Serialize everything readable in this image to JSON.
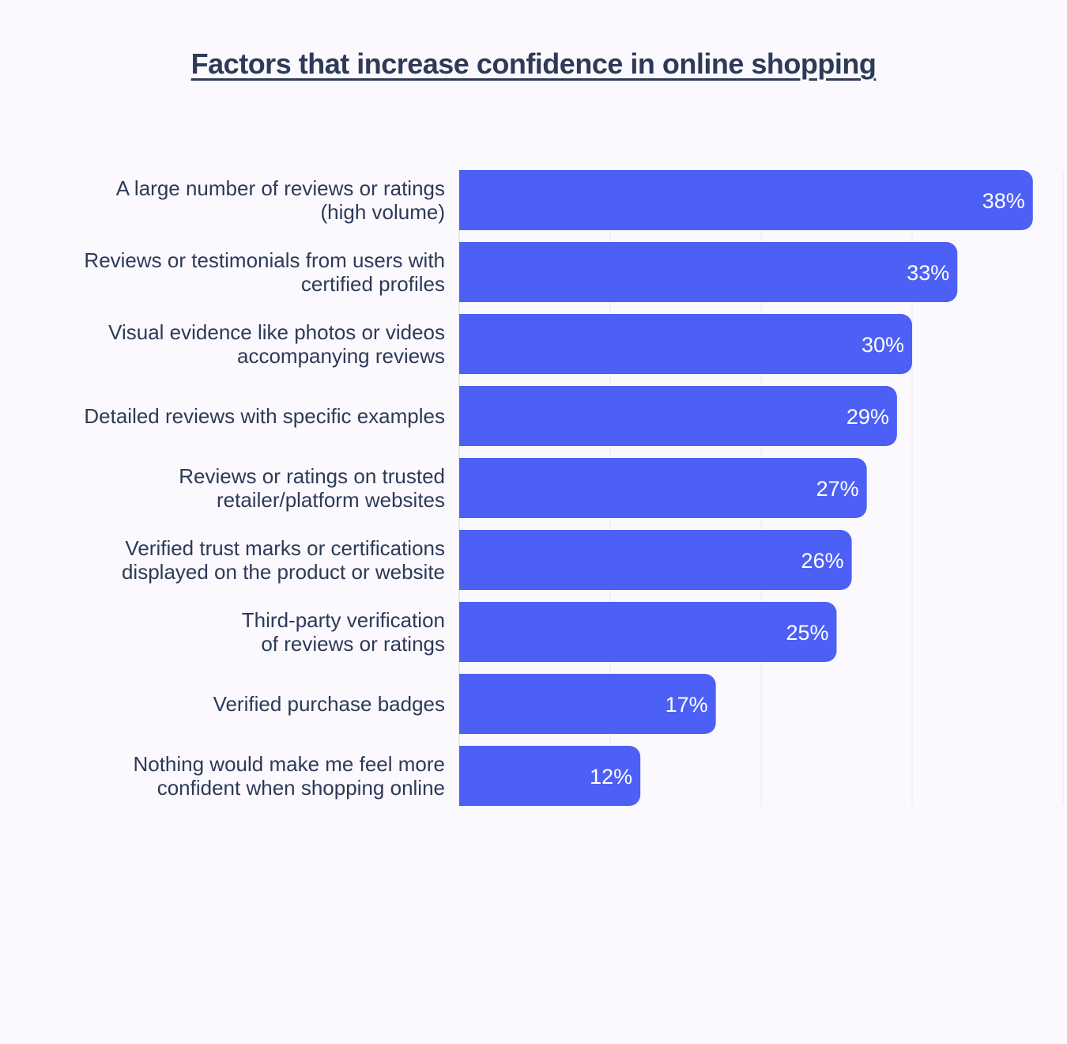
{
  "chart_data": {
    "type": "bar",
    "orientation": "horizontal",
    "title": "Factors that increase confidence in online shopping",
    "xlabel": "",
    "ylabel": "",
    "xlim": [
      0,
      40
    ],
    "grid": true,
    "value_suffix": "%",
    "categories": [
      [
        "A large number of reviews or ratings",
        "(high volume)"
      ],
      [
        "Reviews or testimonials from users with",
        "certified profiles"
      ],
      [
        "Visual evidence like photos or videos",
        "accompanying reviews"
      ],
      [
        "Detailed reviews with specific examples"
      ],
      [
        "Reviews or ratings on trusted",
        "retailer/platform websites"
      ],
      [
        "Verified trust marks or certifications",
        "displayed on the product or website"
      ],
      [
        "Third-party verification",
        "of reviews or ratings"
      ],
      [
        "Verified purchase badges"
      ],
      [
        "Nothing would make me feel more",
        "confident when shopping online"
      ]
    ],
    "values": [
      38,
      33,
      30,
      29,
      27,
      26,
      25,
      17,
      12
    ],
    "data_labels": [
      "38%",
      "33%",
      "30%",
      "29%",
      "27%",
      "26%",
      "25%",
      "17%",
      "12%"
    ],
    "bar_color": "#4d60f5"
  }
}
